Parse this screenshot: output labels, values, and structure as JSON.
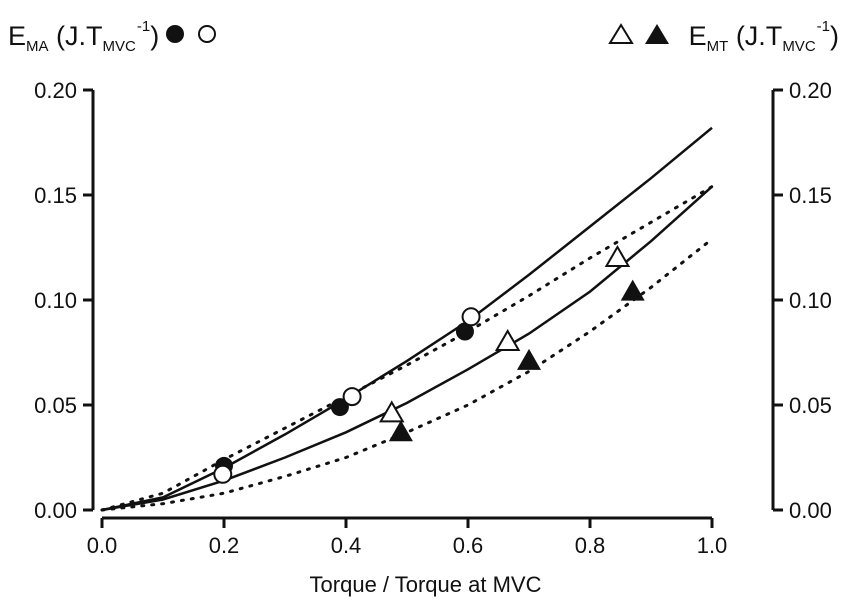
{
  "chart_data": {
    "type": "scatter",
    "xlabel": "Torque / Torque at MVC",
    "xlim": [
      0.0,
      1.0
    ],
    "ylim": [
      0.0,
      0.2
    ],
    "x_ticks": [
      "0.0",
      "0.2",
      "0.4",
      "0.6",
      "0.8",
      "1.0"
    ],
    "y_ticks_left": [
      "0.00",
      "0.05",
      "0.10",
      "0.15",
      "0.20"
    ],
    "y_ticks_right": [
      "0.00",
      "0.05",
      "0.10",
      "0.15",
      "0.20"
    ],
    "grid": false,
    "legend": {
      "left": {
        "base": "E",
        "sub": "MA",
        "unit_prefix": "(J.T",
        "unit_sub": "MVC",
        "unit_sup": "-1",
        "unit_suffix": ")",
        "markers": [
          "filled-circle",
          "open-circle"
        ]
      },
      "right": {
        "base": "E",
        "sub": "MT",
        "unit_prefix": "(J.T",
        "unit_sub": "MVC",
        "unit_sup": "-1",
        "unit_suffix": ")",
        "markers": [
          "open-triangle",
          "filled-triangle"
        ]
      }
    },
    "series": [
      {
        "marker": "filled-circle",
        "x": [
          0.2,
          0.39,
          0.595
        ],
        "y": [
          0.021,
          0.049,
          0.085
        ]
      },
      {
        "marker": "open-circle",
        "x": [
          0.198,
          0.41,
          0.605
        ],
        "y": [
          0.017,
          0.054,
          0.092
        ]
      },
      {
        "marker": "open-triangle",
        "x": [
          0.475,
          0.665,
          0.845
        ],
        "y": [
          0.046,
          0.08,
          0.12
        ]
      },
      {
        "marker": "filled-triangle",
        "x": [
          0.49,
          0.7,
          0.87
        ],
        "y": [
          0.037,
          0.071,
          0.104
        ]
      }
    ],
    "curves": [
      {
        "style": "solid",
        "x": [
          0.0,
          0.1,
          0.2,
          0.3,
          0.4,
          0.5,
          0.6,
          0.7,
          0.8,
          0.9,
          1.0
        ],
        "y": [
          0.0,
          0.006,
          0.02,
          0.036,
          0.053,
          0.071,
          0.09,
          0.112,
          0.135,
          0.158,
          0.182
        ]
      },
      {
        "style": "dotted",
        "x": [
          0.0,
          0.1,
          0.2,
          0.3,
          0.4,
          0.5,
          0.6,
          0.7,
          0.8,
          0.9,
          1.0
        ],
        "y": [
          0.0,
          0.008,
          0.024,
          0.039,
          0.054,
          0.069,
          0.085,
          0.102,
          0.12,
          0.137,
          0.154
        ]
      },
      {
        "style": "solid",
        "x": [
          0.0,
          0.1,
          0.2,
          0.3,
          0.4,
          0.5,
          0.6,
          0.7,
          0.8,
          0.9,
          1.0
        ],
        "y": [
          0.0,
          0.005,
          0.014,
          0.025,
          0.037,
          0.051,
          0.067,
          0.084,
          0.104,
          0.128,
          0.154
        ]
      },
      {
        "style": "dotted",
        "x": [
          0.0,
          0.1,
          0.2,
          0.3,
          0.4,
          0.5,
          0.6,
          0.7,
          0.8,
          0.9,
          1.0
        ],
        "y": [
          0.0,
          0.003,
          0.008,
          0.016,
          0.025,
          0.037,
          0.05,
          0.066,
          0.085,
          0.106,
          0.129
        ]
      }
    ]
  }
}
